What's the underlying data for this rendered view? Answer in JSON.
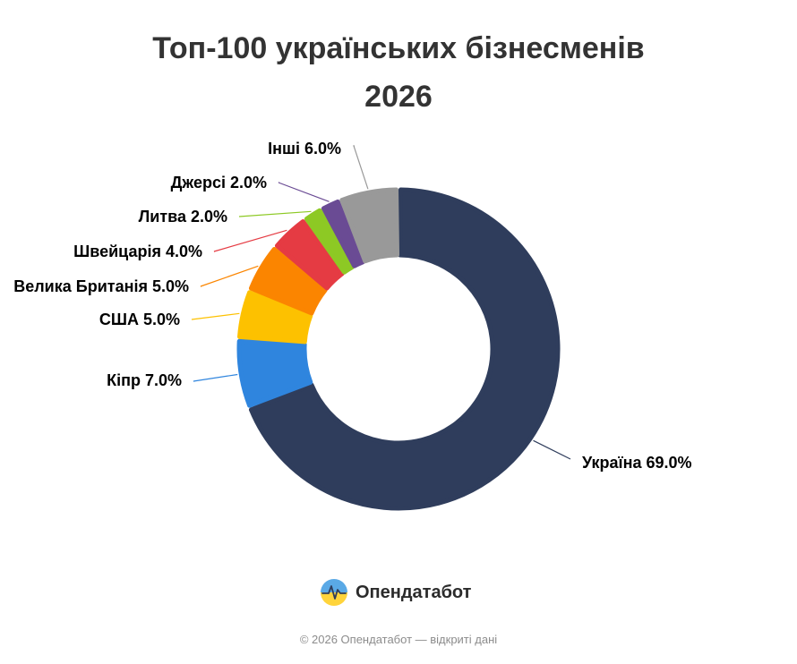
{
  "chart_data": {
    "type": "pie",
    "subtype": "donut",
    "title_line1": "Топ-100 українських бізнесменів",
    "title_line2": "2026",
    "series": [
      {
        "name": "Україна",
        "label": "Україна 69.0%",
        "value": 69.0,
        "color": "#2f3d5c"
      },
      {
        "name": "Кіпр",
        "label": "Кіпр 7.0%",
        "value": 7.0,
        "color": "#2f85de"
      },
      {
        "name": "США",
        "label": "США 5.0%",
        "value": 5.0,
        "color": "#fdc100"
      },
      {
        "name": "Велика Британія",
        "label": "Велика Британія 5.0%",
        "value": 5.0,
        "color": "#fb8500"
      },
      {
        "name": "Швейцарія",
        "label": "Швейцарія 4.0%",
        "value": 4.0,
        "color": "#e53b43"
      },
      {
        "name": "Литва",
        "label": "Литва 2.0%",
        "value": 2.0,
        "color": "#8dc924"
      },
      {
        "name": "Джерсі",
        "label": "Джерсі 2.0%",
        "value": 2.0,
        "color": "#6a4b94"
      },
      {
        "name": "Інші",
        "label": "Інші 6.0%",
        "value": 6.0,
        "color": "#999999"
      }
    ]
  },
  "brand": {
    "name": "Опендатабот"
  },
  "footer": {
    "text": "© 2026 Опендатабот — відкриті дані"
  }
}
